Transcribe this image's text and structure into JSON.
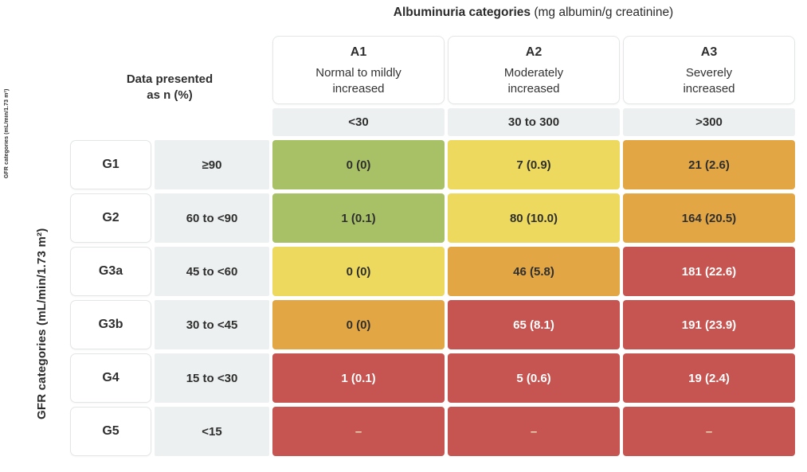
{
  "title": {
    "bold": "Albuminuria categories",
    "units": " (mg albumin/g creatinine)"
  },
  "axis": {
    "gfr_main": "GFR categories (mL/min/1.73 m²)",
    "gfr_small": "GFR categories (mL/min/1.73 m²)"
  },
  "corner": {
    "line1": "Data presented",
    "line2": "as n (%)"
  },
  "columns": [
    {
      "code": "A1",
      "desc": "Normal to mildly\nincreased",
      "range": "<30"
    },
    {
      "code": "A2",
      "desc": "Moderately\nincreased",
      "range": "30 to 300"
    },
    {
      "code": "A3",
      "desc": "Severely\nincreased",
      "range": ">300"
    }
  ],
  "rows": [
    {
      "code": "G1",
      "range": "≥90",
      "cells": [
        {
          "text": "0 (0)",
          "color": "green"
        },
        {
          "text": "7 (0.9)",
          "color": "yellow"
        },
        {
          "text": "21 (2.6)",
          "color": "orange"
        }
      ]
    },
    {
      "code": "G2",
      "range": "60 to <90",
      "cells": [
        {
          "text": "1 (0.1)",
          "color": "green"
        },
        {
          "text": "80 (10.0)",
          "color": "yellow"
        },
        {
          "text": "164 (20.5)",
          "color": "orange"
        }
      ]
    },
    {
      "code": "G3a",
      "range": "45 to <60",
      "cells": [
        {
          "text": "0 (0)",
          "color": "yellow"
        },
        {
          "text": "46 (5.8)",
          "color": "orange"
        },
        {
          "text": "181 (22.6)",
          "color": "red"
        }
      ]
    },
    {
      "code": "G3b",
      "range": "30 to <45",
      "cells": [
        {
          "text": "0 (0)",
          "color": "orange"
        },
        {
          "text": "65 (8.1)",
          "color": "red"
        },
        {
          "text": "191 (23.9)",
          "color": "red"
        }
      ]
    },
    {
      "code": "G4",
      "range": "15 to <30",
      "cells": [
        {
          "text": "1 (0.1)",
          "color": "red"
        },
        {
          "text": "5 (0.6)",
          "color": "red"
        },
        {
          "text": "19 (2.4)",
          "color": "red"
        }
      ]
    },
    {
      "code": "G5",
      "range": "<15",
      "cells": [
        {
          "text": "–",
          "color": "red_dash"
        },
        {
          "text": "–",
          "color": "red_dash"
        },
        {
          "text": "–",
          "color": "red_dash"
        }
      ]
    }
  ],
  "palette": {
    "green": {
      "bg": "#a8c166",
      "text": "#2f2f2f"
    },
    "yellow": {
      "bg": "#ecd95e",
      "text": "#2f2f2f"
    },
    "orange": {
      "bg": "#e2a645",
      "text": "#2f2f2f"
    },
    "red": {
      "bg": "#c65450",
      "text": "#ffffff"
    },
    "red_dash": {
      "bg": "#c65450",
      "text": "#f0ddb8"
    }
  },
  "ui_colors": {
    "background": "#ffffff",
    "cell_gray": "#edf0f0",
    "card_border": "#e3e6e6",
    "text_dark": "#2f2f2f"
  },
  "chart_data": {
    "type": "heatmap",
    "title": "Albuminuria categories (mg albumin/g creatinine)",
    "xlabel": "Albuminuria categories (mg albumin/g creatinine)",
    "ylabel": "GFR categories (mL/min/1.73 m²)",
    "note": "Data presented as n (%)",
    "x_categories": [
      "A1: Normal to mildly increased (<30)",
      "A2: Moderately increased (30 to 300)",
      "A3: Severely increased (>300)"
    ],
    "y_categories": [
      "G1: ≥90",
      "G2: 60 to <90",
      "G3a: 45 to <60",
      "G3b: 30 to <45",
      "G4: 15 to <30",
      "G5: <15"
    ],
    "values_n": [
      [
        0,
        7,
        21
      ],
      [
        1,
        80,
        164
      ],
      [
        0,
        46,
        181
      ],
      [
        0,
        65,
        191
      ],
      [
        1,
        5,
        19
      ],
      [
        null,
        null,
        null
      ]
    ],
    "values_pct": [
      [
        0,
        0.9,
        2.6
      ],
      [
        0.1,
        10.0,
        20.5
      ],
      [
        0,
        5.8,
        22.6
      ],
      [
        0,
        8.1,
        23.9
      ],
      [
        0.1,
        0.6,
        2.4
      ],
      [
        null,
        null,
        null
      ]
    ],
    "cell_risk_colors": [
      [
        "green",
        "yellow",
        "orange"
      ],
      [
        "green",
        "yellow",
        "orange"
      ],
      [
        "yellow",
        "orange",
        "red"
      ],
      [
        "orange",
        "red",
        "red"
      ],
      [
        "red",
        "red",
        "red"
      ],
      [
        "red",
        "red",
        "red"
      ]
    ],
    "legend_position": "none",
    "grid": false
  }
}
